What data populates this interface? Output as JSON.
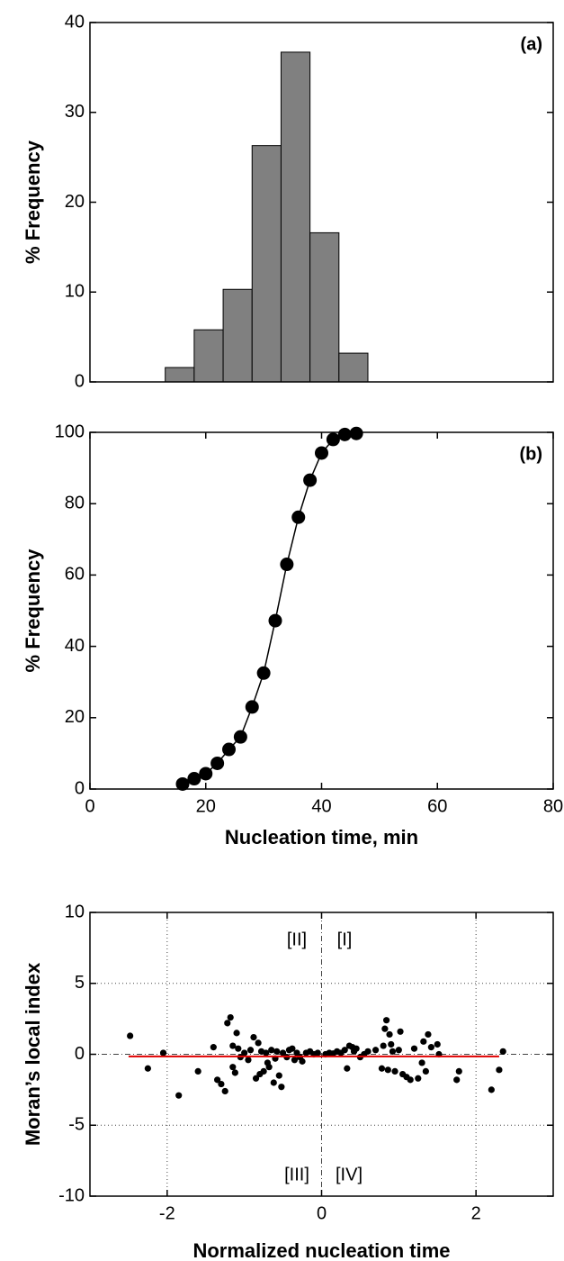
{
  "chart_data": [
    {
      "type": "histogram",
      "panel_label": "(a)",
      "ylabel": "% Frequency",
      "bins": [
        13,
        18,
        23,
        28,
        33,
        38,
        43,
        48
      ],
      "values": [
        1.6,
        5.8,
        10.3,
        26.3,
        36.7,
        16.6,
        3.2
      ],
      "color": "#808080",
      "xlim": [
        0,
        80
      ],
      "ylim": [
        0,
        40
      ],
      "yticks": [
        0,
        10,
        20,
        30,
        40
      ]
    },
    {
      "type": "line",
      "panel_label": "(b)",
      "ylabel": "% Frequency",
      "xlabel": "Nucleation time, min",
      "x": [
        16,
        18,
        20,
        22,
        24,
        26,
        28,
        30,
        32,
        34,
        36,
        38,
        40,
        42,
        44,
        46
      ],
      "y": [
        1.4,
        2.9,
        4.3,
        7.2,
        11.1,
        14.6,
        23,
        32.5,
        47.2,
        63,
        76.2,
        86.6,
        94.2,
        98,
        99.4,
        99.7
      ],
      "color": "#000000",
      "xlim": [
        0,
        80
      ],
      "xticks": [
        0,
        20,
        40,
        60,
        80
      ],
      "ylim": [
        0,
        100
      ],
      "yticks": [
        0,
        20,
        40,
        60,
        80,
        100
      ]
    },
    {
      "type": "scatter",
      "ylabel": "Moran’s local index",
      "xlabel": "Normalized nucleation time",
      "quadrant_labels": [
        "[II]",
        "[I]",
        "[III]",
        "[IV]"
      ],
      "x": [
        -2.48,
        -2.25,
        -2.05,
        -1.85,
        -1.6,
        -1.4,
        -1.35,
        -1.3,
        -1.25,
        -1.22,
        -1.18,
        -1.15,
        -1.15,
        -1.12,
        -1.1,
        -1.08,
        -1.05,
        -1.0,
        -0.95,
        -0.92,
        -0.88,
        -0.85,
        -0.82,
        -0.8,
        -0.78,
        -0.75,
        -0.72,
        -0.7,
        -0.68,
        -0.65,
        -0.62,
        -0.6,
        -0.58,
        -0.55,
        -0.52,
        -0.5,
        -0.45,
        -0.42,
        -0.38,
        -0.35,
        -0.32,
        -0.28,
        -0.25,
        -0.2,
        -0.15,
        -0.1,
        -0.05,
        0.05,
        0.1,
        0.15,
        0.2,
        0.25,
        0.3,
        0.33,
        0.36,
        0.4,
        0.42,
        0.45,
        0.5,
        0.55,
        0.6,
        0.7,
        0.78,
        0.8,
        0.82,
        0.84,
        0.86,
        0.88,
        0.9,
        0.92,
        0.95,
        1.0,
        1.02,
        1.05,
        1.1,
        1.15,
        1.2,
        1.25,
        1.3,
        1.32,
        1.35,
        1.38,
        1.42,
        1.5,
        1.52,
        1.75,
        1.78,
        2.2,
        2.3,
        2.35
      ],
      "y": [
        1.3,
        -1.0,
        0.1,
        -2.9,
        -1.2,
        0.5,
        -1.8,
        -2.1,
        -2.6,
        2.2,
        2.6,
        0.6,
        -0.9,
        -1.3,
        1.5,
        0.4,
        -0.2,
        0.1,
        -0.4,
        0.3,
        1.2,
        -1.7,
        0.8,
        -1.4,
        0.2,
        -1.2,
        0.1,
        -0.6,
        -0.9,
        0.3,
        -2.0,
        -0.3,
        0.2,
        -1.5,
        -2.3,
        0.1,
        -0.2,
        0.3,
        0.4,
        -0.4,
        0.1,
        -0.2,
        -0.5,
        0.1,
        0.2,
        0.0,
        0.1,
        0.0,
        0.1,
        0.05,
        0.2,
        0.1,
        0.3,
        -1.0,
        0.6,
        0.5,
        0.2,
        0.4,
        -0.2,
        0.0,
        0.2,
        0.3,
        -1.0,
        0.6,
        1.8,
        2.4,
        -1.1,
        1.4,
        0.7,
        0.2,
        -1.2,
        0.3,
        1.6,
        -1.4,
        -1.6,
        -1.8,
        0.4,
        -1.7,
        -0.6,
        0.9,
        -1.2,
        1.4,
        0.5,
        0.7,
        0.0,
        -1.8,
        -1.2,
        -2.5,
        -1.1,
        0.2
      ],
      "color": "#000000",
      "fit_line": {
        "x": [
          -2.5,
          2.3
        ],
        "y": [
          -0.15,
          -0.15
        ],
        "color": "#e00000"
      },
      "grid": true,
      "xlim": [
        -3,
        3
      ],
      "xticks": [
        -2,
        0,
        2
      ],
      "ylim": [
        -10,
        10
      ],
      "yticks": [
        -10,
        -5,
        0,
        5,
        10
      ]
    }
  ]
}
